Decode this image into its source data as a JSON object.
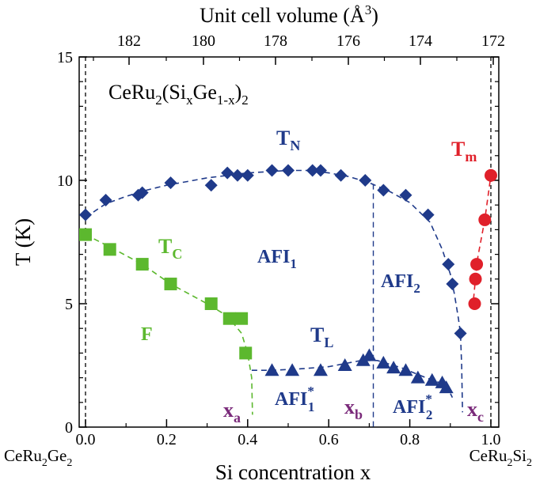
{
  "chart_data": {
    "type": "scatter",
    "compound": {
      "base": "CeRu",
      "sub1": "2",
      "mid": "(Si",
      "sub2": "x",
      "mid2": "Ge",
      "sub3": "1-x",
      "end": ")",
      "sub4": "2"
    },
    "xlabel": "Si concentration x",
    "ylabel": "T (K)",
    "top_axis_label": {
      "text": "Unit cell volume (Å",
      "sup": "3",
      "end": ")"
    },
    "xlim": [
      0.0,
      1.0
    ],
    "ylim": [
      0,
      15
    ],
    "x_ticks": [
      "0.0",
      "0.2",
      "0.4",
      "0.6",
      "0.8",
      "1.0"
    ],
    "y_ticks": [
      "0",
      "5",
      "10",
      "15"
    ],
    "top_ticks": [
      "182",
      "180",
      "178",
      "176",
      "174",
      "172"
    ],
    "end_labels": {
      "left": {
        "base": "CeRu",
        "sub1": "2",
        "mid": "Ge",
        "sub2": "2"
      },
      "right": {
        "base": "CeRu",
        "sub1": "2",
        "mid": "Si",
        "sub2": "2"
      }
    },
    "colors": {
      "TN": "#1f3a8a",
      "TC": "#5cb82e",
      "TL": "#1f3a8a",
      "Tm": "#e0202a",
      "x_marks": "#7a2a7a",
      "axis": "#000000"
    },
    "series": [
      {
        "name": "T_N",
        "marker": "diamond",
        "points": [
          [
            0.0,
            8.6
          ],
          [
            0.05,
            9.2
          ],
          [
            0.13,
            9.4
          ],
          [
            0.14,
            9.5
          ],
          [
            0.21,
            9.9
          ],
          [
            0.31,
            9.8
          ],
          [
            0.35,
            10.3
          ],
          [
            0.375,
            10.2
          ],
          [
            0.4,
            10.2
          ],
          [
            0.46,
            10.4
          ],
          [
            0.5,
            10.4
          ],
          [
            0.56,
            10.4
          ],
          [
            0.58,
            10.4
          ],
          [
            0.63,
            10.2
          ],
          [
            0.69,
            10.0
          ],
          [
            0.735,
            9.6
          ],
          [
            0.79,
            9.4
          ],
          [
            0.845,
            8.6
          ],
          [
            0.895,
            6.6
          ],
          [
            0.905,
            5.8
          ],
          [
            0.925,
            3.8
          ]
        ]
      },
      {
        "name": "T_C",
        "marker": "square",
        "points": [
          [
            0.0,
            7.8
          ],
          [
            0.06,
            7.2
          ],
          [
            0.14,
            6.6
          ],
          [
            0.21,
            5.8
          ],
          [
            0.31,
            5.0
          ],
          [
            0.355,
            4.4
          ],
          [
            0.385,
            4.4
          ],
          [
            0.395,
            3.0
          ]
        ]
      },
      {
        "name": "T_L",
        "marker": "triangle",
        "points": [
          [
            0.46,
            2.3
          ],
          [
            0.51,
            2.3
          ],
          [
            0.58,
            2.3
          ],
          [
            0.64,
            2.5
          ],
          [
            0.685,
            2.7
          ],
          [
            0.7,
            2.9
          ],
          [
            0.735,
            2.6
          ],
          [
            0.76,
            2.4
          ],
          [
            0.79,
            2.3
          ],
          [
            0.82,
            2.0
          ],
          [
            0.855,
            1.9
          ],
          [
            0.88,
            1.8
          ],
          [
            0.89,
            1.6
          ]
        ]
      },
      {
        "name": "T_m",
        "marker": "circle",
        "points": [
          [
            0.96,
            5.0
          ],
          [
            0.962,
            6.0
          ],
          [
            0.965,
            6.6
          ],
          [
            0.985,
            8.4
          ],
          [
            1.0,
            10.2
          ]
        ]
      }
    ],
    "curve_labels": [
      {
        "id": "TN",
        "main": "T",
        "sub": "N"
      },
      {
        "id": "TC",
        "main": "T",
        "sub": "C"
      },
      {
        "id": "TL",
        "main": "T",
        "sub": "L"
      },
      {
        "id": "Tm",
        "main": "T",
        "sub": "m"
      }
    ],
    "region_labels": [
      {
        "id": "AFI1",
        "main": "AFI",
        "sub": "1",
        "sup": ""
      },
      {
        "id": "AFI2",
        "main": "AFI",
        "sub": "2",
        "sup": ""
      },
      {
        "id": "F",
        "main": "F",
        "sub": "",
        "sup": ""
      },
      {
        "id": "AFI1star",
        "main": "AFI",
        "sub": "1",
        "sup": "*"
      },
      {
        "id": "AFI2star",
        "main": "AFI",
        "sub": "2",
        "sup": "*"
      }
    ],
    "critical_points": [
      {
        "id": "xa",
        "main": "x",
        "sub": "a",
        "x": 0.41
      },
      {
        "id": "xb",
        "main": "x",
        "sub": "b",
        "x": 0.71
      },
      {
        "id": "xc",
        "main": "x",
        "sub": "c",
        "x": 0.93
      }
    ],
    "grid": false
  }
}
